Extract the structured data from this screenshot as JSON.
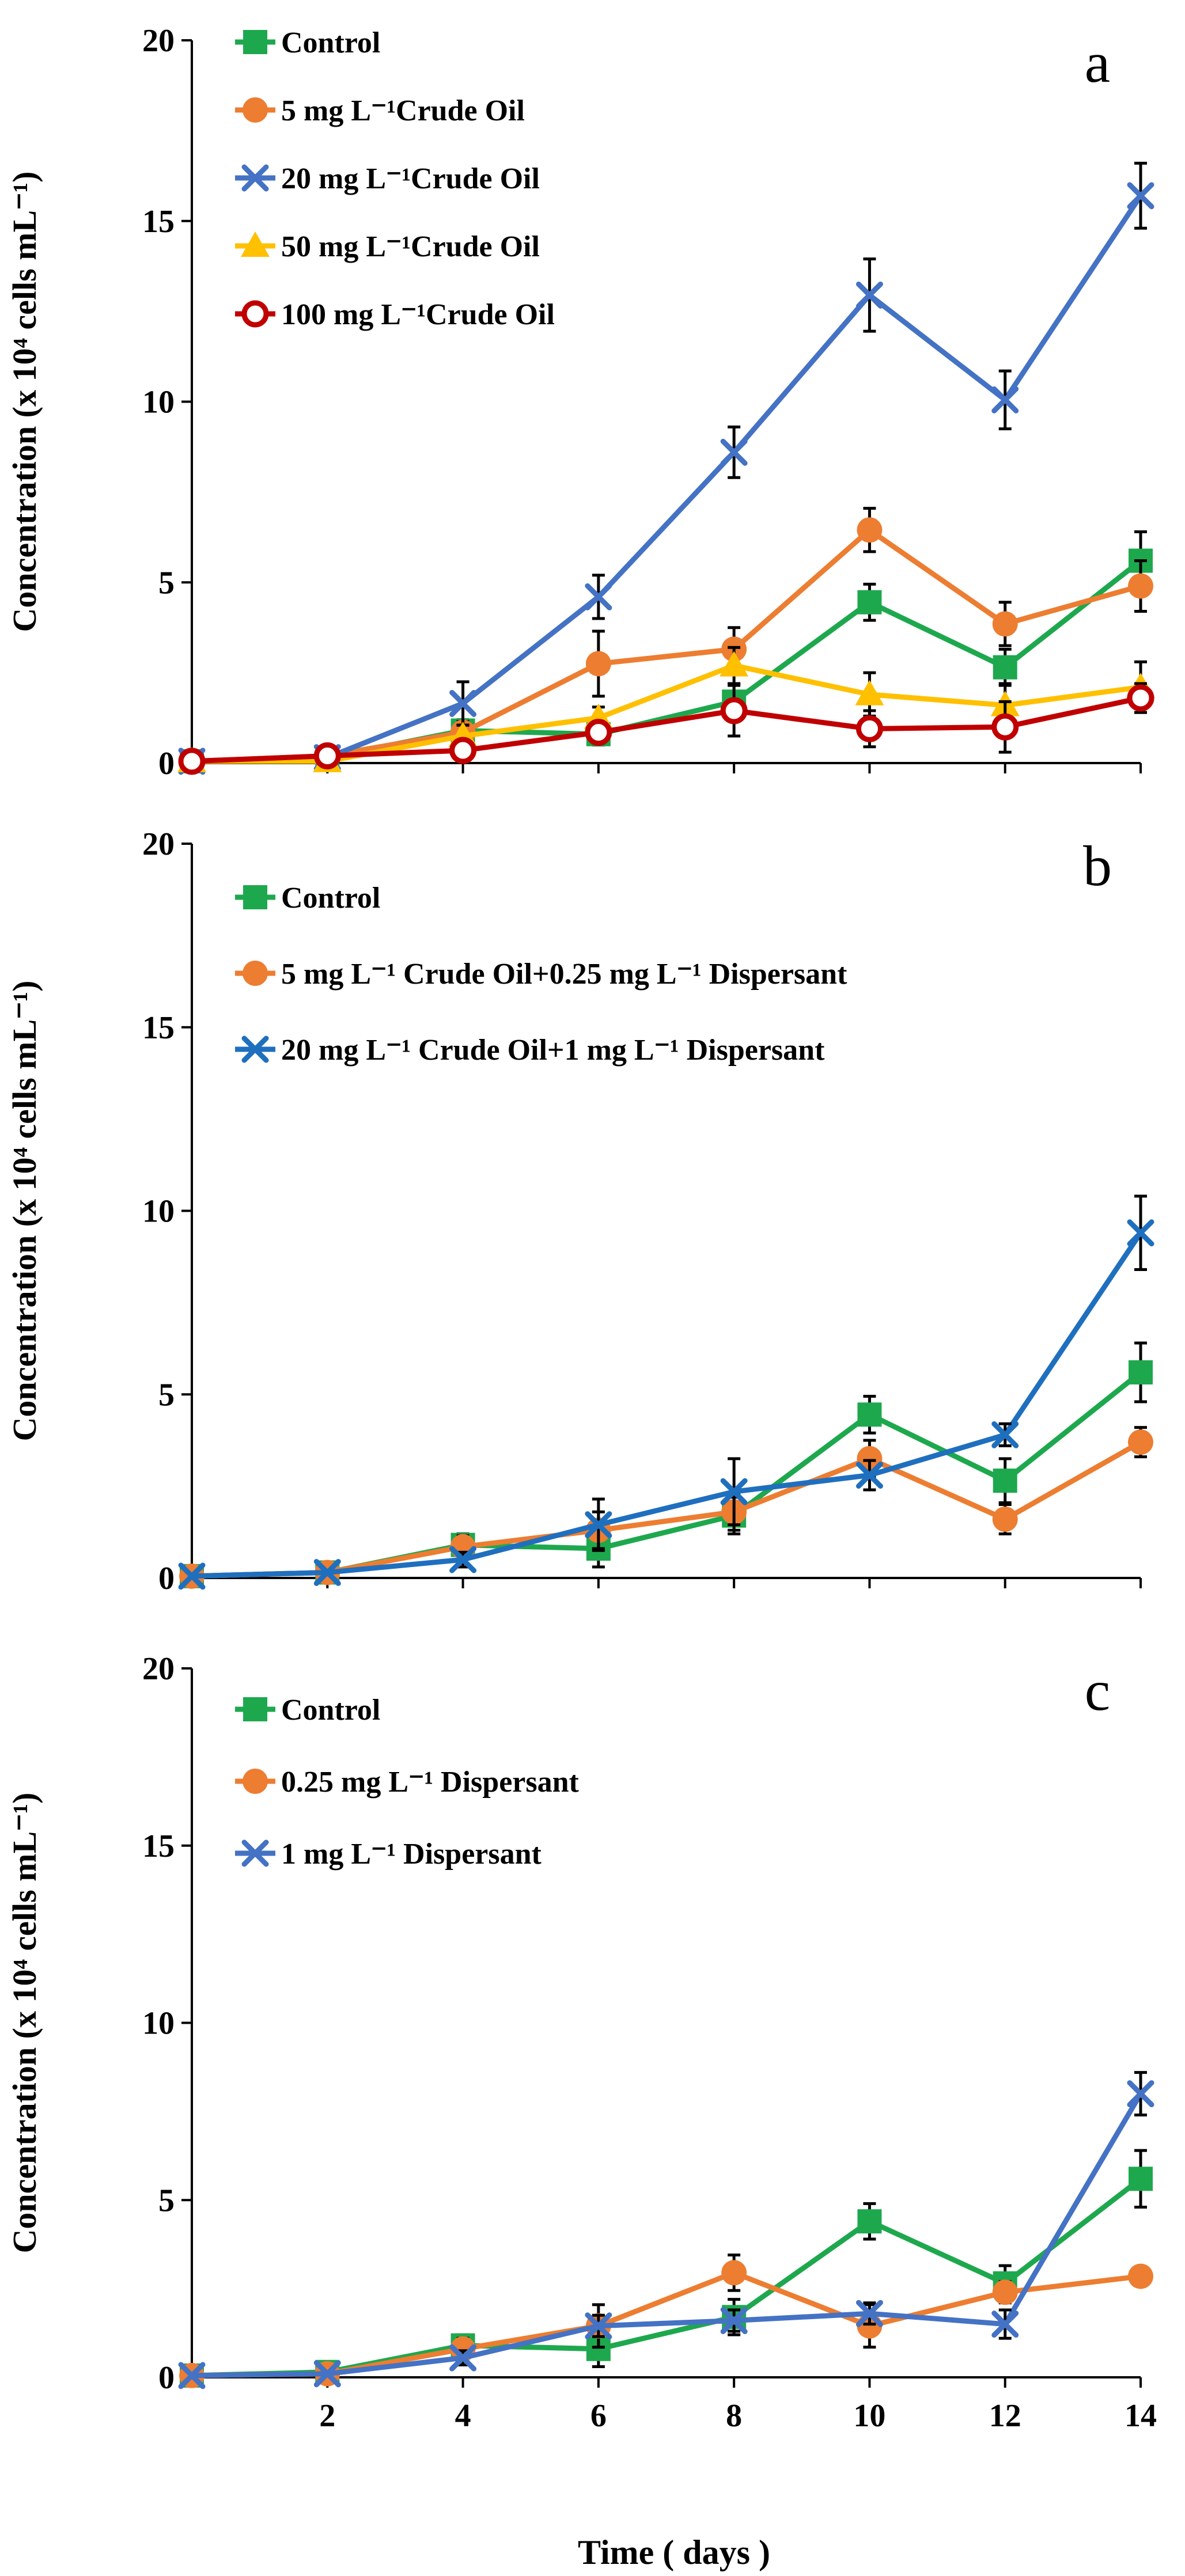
{
  "figure": {
    "xlabel": "Time ( days )",
    "ylabel": "Concentration (x 10⁴ cells mL⁻¹)"
  },
  "chart_data": [
    {
      "type": "line",
      "panel_label": "a",
      "x": [
        0,
        2,
        4,
        6,
        8,
        10,
        12,
        14
      ],
      "ylim": [
        0,
        20
      ],
      "yticks": [
        "0",
        "5",
        "10",
        "15",
        "20"
      ],
      "xticks": [],
      "ylabel": "Concentration (x 10⁴ cells mL⁻¹)",
      "xlabel": "",
      "legend": "top-left",
      "series": [
        {
          "name": "Control",
          "color": "#1ea84e",
          "marker": "square",
          "values": [
            0.05,
            0.15,
            0.9,
            0.8,
            1.7,
            4.45,
            2.65,
            5.6
          ],
          "errors": [
            0,
            0,
            0.3,
            0.3,
            0.5,
            0.5,
            0.5,
            0.8
          ]
        },
        {
          "name": "5 mg L⁻¹Crude Oil",
          "color": "#ed7d31",
          "marker": "circle",
          "values": [
            0.05,
            0.2,
            0.85,
            2.75,
            3.15,
            6.45,
            3.85,
            4.9
          ],
          "errors": [
            0,
            0,
            0.3,
            0.9,
            0.6,
            0.6,
            0.6,
            0.7
          ]
        },
        {
          "name": "20 mg L⁻¹Crude Oil",
          "color": "#4472c4",
          "marker": "x",
          "values": [
            0.05,
            0.15,
            1.65,
            4.6,
            8.6,
            12.95,
            10.05,
            15.7
          ],
          "errors": [
            0,
            0,
            0.6,
            0.6,
            0.7,
            1.0,
            0.8,
            0.9
          ]
        },
        {
          "name": "50 mg L⁻¹Crude Oil",
          "color": "#ffc000",
          "marker": "triangle",
          "values": [
            0.05,
            0.05,
            0.75,
            1.25,
            2.7,
            1.9,
            1.6,
            2.1
          ],
          "errors": [
            0,
            0,
            0.3,
            0.3,
            0.5,
            0.6,
            0.6,
            0.7
          ]
        },
        {
          "name": "100 mg L⁻¹Crude Oil",
          "color": "#c00000",
          "marker": "ocircle",
          "values": [
            0.05,
            0.2,
            0.35,
            0.85,
            1.45,
            0.95,
            1.0,
            1.8
          ],
          "errors": [
            0,
            0,
            0.1,
            0.3,
            0.7,
            0.5,
            0.7,
            0.4
          ]
        }
      ]
    },
    {
      "type": "line",
      "panel_label": "b",
      "x": [
        0,
        2,
        4,
        6,
        8,
        10,
        12,
        14
      ],
      "ylim": [
        0,
        20
      ],
      "yticks": [
        "0",
        "5",
        "10",
        "15",
        "20"
      ],
      "xticks": [],
      "ylabel": "Concentration (x 10⁴ cells mL⁻¹)",
      "xlabel": "",
      "legend": "top-left",
      "series": [
        {
          "name": "Control",
          "color": "#1ea84e",
          "marker": "square",
          "values": [
            0.05,
            0.15,
            0.9,
            0.8,
            1.7,
            4.45,
            2.65,
            5.6
          ],
          "errors": [
            0,
            0,
            0.3,
            0.5,
            0.5,
            0.5,
            0.6,
            0.8
          ]
        },
        {
          "name": "5 mg L⁻¹ Crude Oil+0.25 mg L⁻¹ Dispersant",
          "color": "#ed7d31",
          "marker": "circle",
          "values": [
            0.05,
            0.15,
            0.85,
            1.3,
            1.8,
            3.25,
            1.6,
            3.7
          ],
          "errors": [
            0,
            0,
            0.3,
            0.5,
            0.5,
            0.5,
            0.4,
            0.4
          ]
        },
        {
          "name": "20 mg L⁻¹ Crude Oil+1 mg L⁻¹ Dispersant",
          "color": "#1f6fbf",
          "marker": "x",
          "values": [
            0.05,
            0.15,
            0.5,
            1.45,
            2.35,
            2.8,
            3.9,
            9.4
          ],
          "errors": [
            0,
            0,
            0.2,
            0.7,
            0.9,
            0.4,
            0.3,
            1.0
          ]
        }
      ]
    },
    {
      "type": "line",
      "panel_label": "c",
      "x": [
        0,
        2,
        4,
        6,
        8,
        10,
        12,
        14
      ],
      "ylim": [
        0,
        20
      ],
      "yticks": [
        "0",
        "5",
        "10",
        "15",
        "20"
      ],
      "xticks": [
        "2",
        "4",
        "6",
        "8",
        "10",
        "12",
        "14"
      ],
      "ylabel": "Concentration (x 10⁴ cells mL⁻¹)",
      "xlabel": "Time ( days )",
      "legend": "top-left",
      "series": [
        {
          "name": "Control",
          "color": "#1ea84e",
          "marker": "square",
          "values": [
            0.05,
            0.15,
            0.9,
            0.8,
            1.7,
            4.4,
            2.65,
            5.6
          ],
          "errors": [
            0,
            0,
            0.3,
            0.5,
            0.5,
            0.5,
            0.5,
            0.8
          ]
        },
        {
          "name": "0.25 mg L⁻¹ Dispersant",
          "color": "#ed7d31",
          "marker": "circle",
          "values": [
            0.05,
            0.1,
            0.8,
            1.45,
            2.95,
            1.45,
            2.4,
            2.85
          ],
          "errors": [
            0,
            0,
            0.3,
            0.6,
            0.5,
            0.6,
            0.3,
            0
          ]
        },
        {
          "name": "1 mg L⁻¹ Dispersant",
          "color": "#4472c4",
          "marker": "x",
          "values": [
            0.05,
            0.1,
            0.55,
            1.45,
            1.6,
            1.8,
            1.5,
            8.0
          ],
          "errors": [
            0,
            0,
            0.2,
            0.3,
            0.3,
            0.3,
            0.4,
            0.6
          ]
        }
      ]
    }
  ]
}
